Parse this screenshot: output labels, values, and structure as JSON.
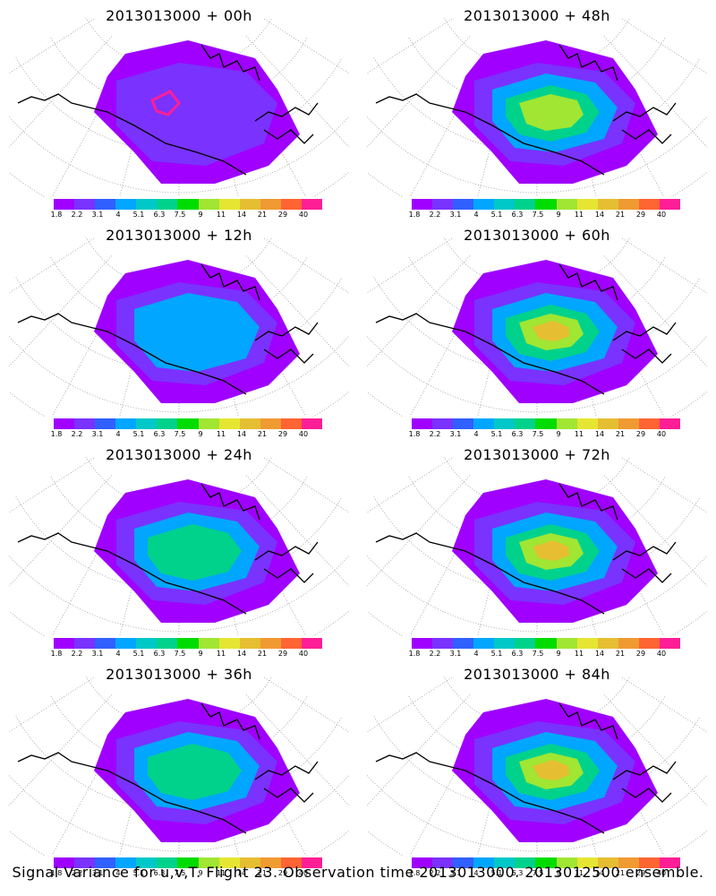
{
  "panels": [
    {
      "title": "2013013000 + 00h",
      "level": 1
    },
    {
      "title": "2013013000 + 48h",
      "level": 4
    },
    {
      "title": "2013013000 + 12h",
      "level": 2
    },
    {
      "title": "2013013000 + 60h",
      "level": 5
    },
    {
      "title": "2013013000 + 24h",
      "level": 3
    },
    {
      "title": "2013013000 + 72h",
      "level": 5
    },
    {
      "title": "2013013000 + 36h",
      "level": 3
    },
    {
      "title": "2013013000 + 84h",
      "level": 6
    }
  ],
  "colorbar": {
    "labels": [
      "1.8",
      "2.2",
      "3.1",
      "4",
      "5.1",
      "6.3",
      "7.5",
      "9",
      "11",
      "14",
      "21",
      "29",
      "40"
    ],
    "colors": [
      "#9f00ff",
      "#7a32ff",
      "#3060ff",
      "#00a6ff",
      "#00c8c8",
      "#00d28c",
      "#00dc00",
      "#a0e632",
      "#e6e632",
      "#e6be32",
      "#f09a32",
      "#ff6432",
      "#ff1e96"
    ]
  },
  "footer": "Signal Variance for u,v,T. Flight 23. Observation time 2013013000. 2013012500 ensemble."
}
